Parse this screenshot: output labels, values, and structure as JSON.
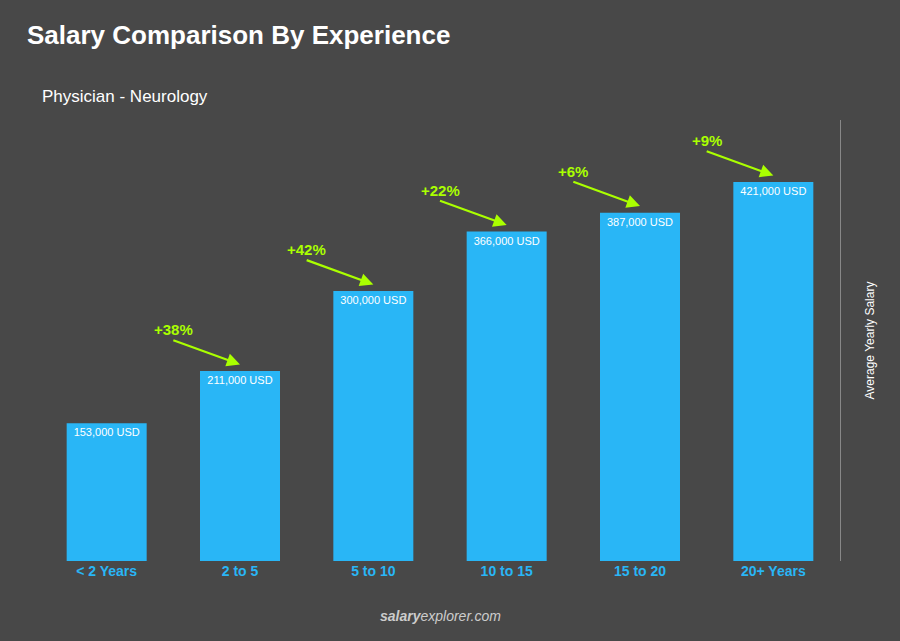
{
  "chart_data": {
    "type": "bar",
    "title": "Salary Comparison By Experience",
    "subtitle": "Physician - Neurology",
    "categories": [
      "< 2 Years",
      "2 to 5",
      "5 to 10",
      "10 to 15",
      "15 to 20",
      "20+ Years"
    ],
    "values": [
      153000,
      211000,
      300000,
      366000,
      387000,
      421000
    ],
    "value_labels": [
      "153,000 USD",
      "211,000 USD",
      "300,000 USD",
      "366,000 USD",
      "387,000 USD",
      "421,000 USD"
    ],
    "data_labels": true,
    "annotations": [
      "+38%",
      "+42%",
      "+22%",
      "+6%",
      "+9%"
    ],
    "watermark": [
      "salary",
      "explorer.com"
    ],
    "ylabel": "Average Yearly Salary",
    "ylim": [
      0,
      490000
    ],
    "tick_labels": "x",
    "grid": false,
    "color": "#29B6F6"
  }
}
